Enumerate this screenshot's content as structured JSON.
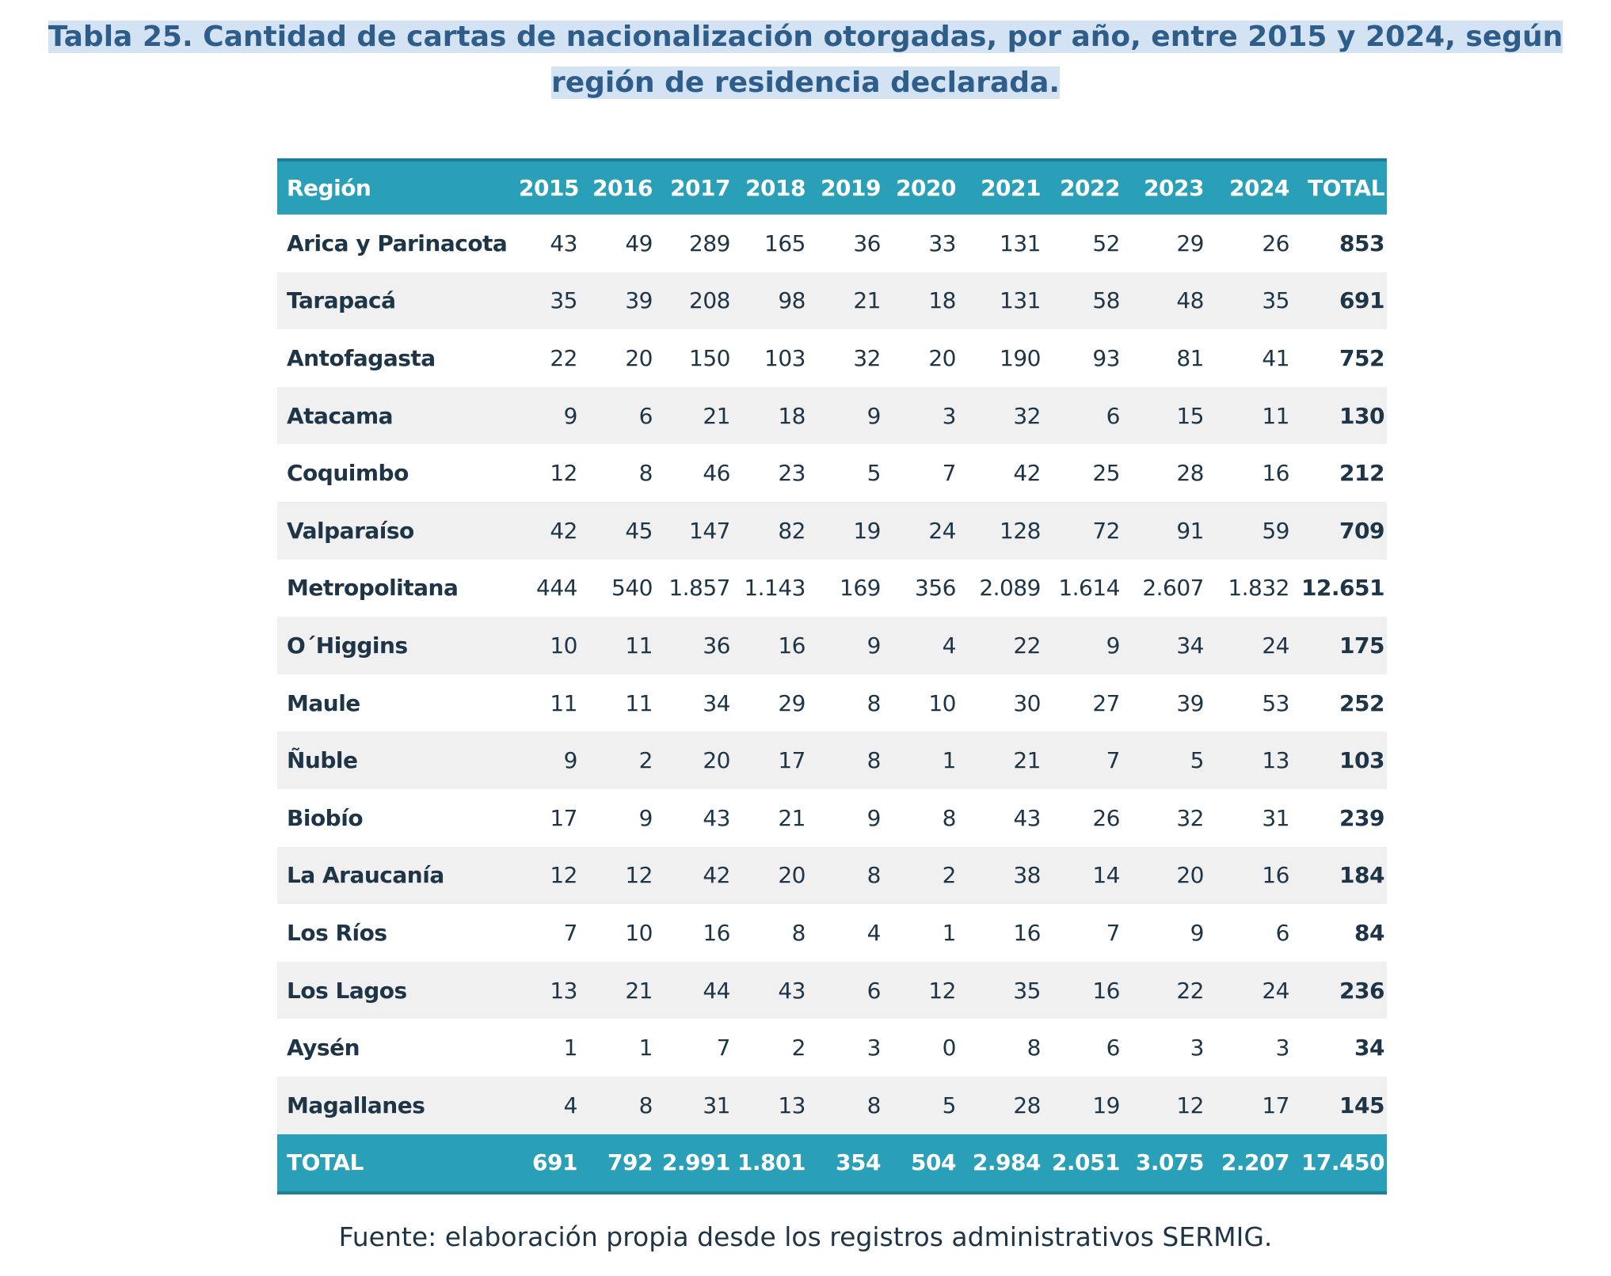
{
  "title": "Tabla 25. Cantidad de cartas de nacionalización otorgadas, por año, entre 2015 y 2024, según región de residencia declarada.",
  "table": {
    "header": [
      "Región",
      "2015",
      "2016",
      "2017",
      "2018",
      "2019",
      "2020",
      "2021",
      "2022",
      "2023",
      "2024",
      "TOTAL"
    ],
    "rows": [
      [
        "Arica y Parinacota",
        "43",
        "49",
        "289",
        "165",
        "36",
        "33",
        "131",
        "52",
        "29",
        "26",
        "853"
      ],
      [
        "Tarapacá",
        "35",
        "39",
        "208",
        "98",
        "21",
        "18",
        "131",
        "58",
        "48",
        "35",
        "691"
      ],
      [
        "Antofagasta",
        "22",
        "20",
        "150",
        "103",
        "32",
        "20",
        "190",
        "93",
        "81",
        "41",
        "752"
      ],
      [
        "Atacama",
        "9",
        "6",
        "21",
        "18",
        "9",
        "3",
        "32",
        "6",
        "15",
        "11",
        "130"
      ],
      [
        "Coquimbo",
        "12",
        "8",
        "46",
        "23",
        "5",
        "7",
        "42",
        "25",
        "28",
        "16",
        "212"
      ],
      [
        "Valparaíso",
        "42",
        "45",
        "147",
        "82",
        "19",
        "24",
        "128",
        "72",
        "91",
        "59",
        "709"
      ],
      [
        "Metropolitana",
        "444",
        "540",
        "1.857",
        "1.143",
        "169",
        "356",
        "2.089",
        "1.614",
        "2.607",
        "1.832",
        "12.651"
      ],
      [
        "O´Higgins",
        "10",
        "11",
        "36",
        "16",
        "9",
        "4",
        "22",
        "9",
        "34",
        "24",
        "175"
      ],
      [
        "Maule",
        "11",
        "11",
        "34",
        "29",
        "8",
        "10",
        "30",
        "27",
        "39",
        "53",
        "252"
      ],
      [
        "Ñuble",
        "9",
        "2",
        "20",
        "17",
        "8",
        "1",
        "21",
        "7",
        "5",
        "13",
        "103"
      ],
      [
        "Biobío",
        "17",
        "9",
        "43",
        "21",
        "9",
        "8",
        "43",
        "26",
        "32",
        "31",
        "239"
      ],
      [
        "La Araucanía",
        "12",
        "12",
        "42",
        "20",
        "8",
        "2",
        "38",
        "14",
        "20",
        "16",
        "184"
      ],
      [
        "Los Ríos",
        "7",
        "10",
        "16",
        "8",
        "4",
        "1",
        "16",
        "7",
        "9",
        "6",
        "84"
      ],
      [
        "Los Lagos",
        "13",
        "21",
        "44",
        "43",
        "6",
        "12",
        "35",
        "16",
        "22",
        "24",
        "236"
      ],
      [
        "Aysén",
        "1",
        "1",
        "7",
        "2",
        "3",
        "0",
        "8",
        "6",
        "3",
        "3",
        "34"
      ],
      [
        "Magallanes",
        "4",
        "8",
        "31",
        "13",
        "8",
        "5",
        "28",
        "19",
        "12",
        "17",
        "145"
      ]
    ],
    "total_row": [
      "TOTAL",
      "691",
      "792",
      "2.991",
      "1.801",
      "354",
      "504",
      "2.984",
      "2.051",
      "3.075",
      "2.207",
      "17.450"
    ]
  },
  "source": "Fuente: elaboración propia desde los registros administrativos SERMIG."
}
